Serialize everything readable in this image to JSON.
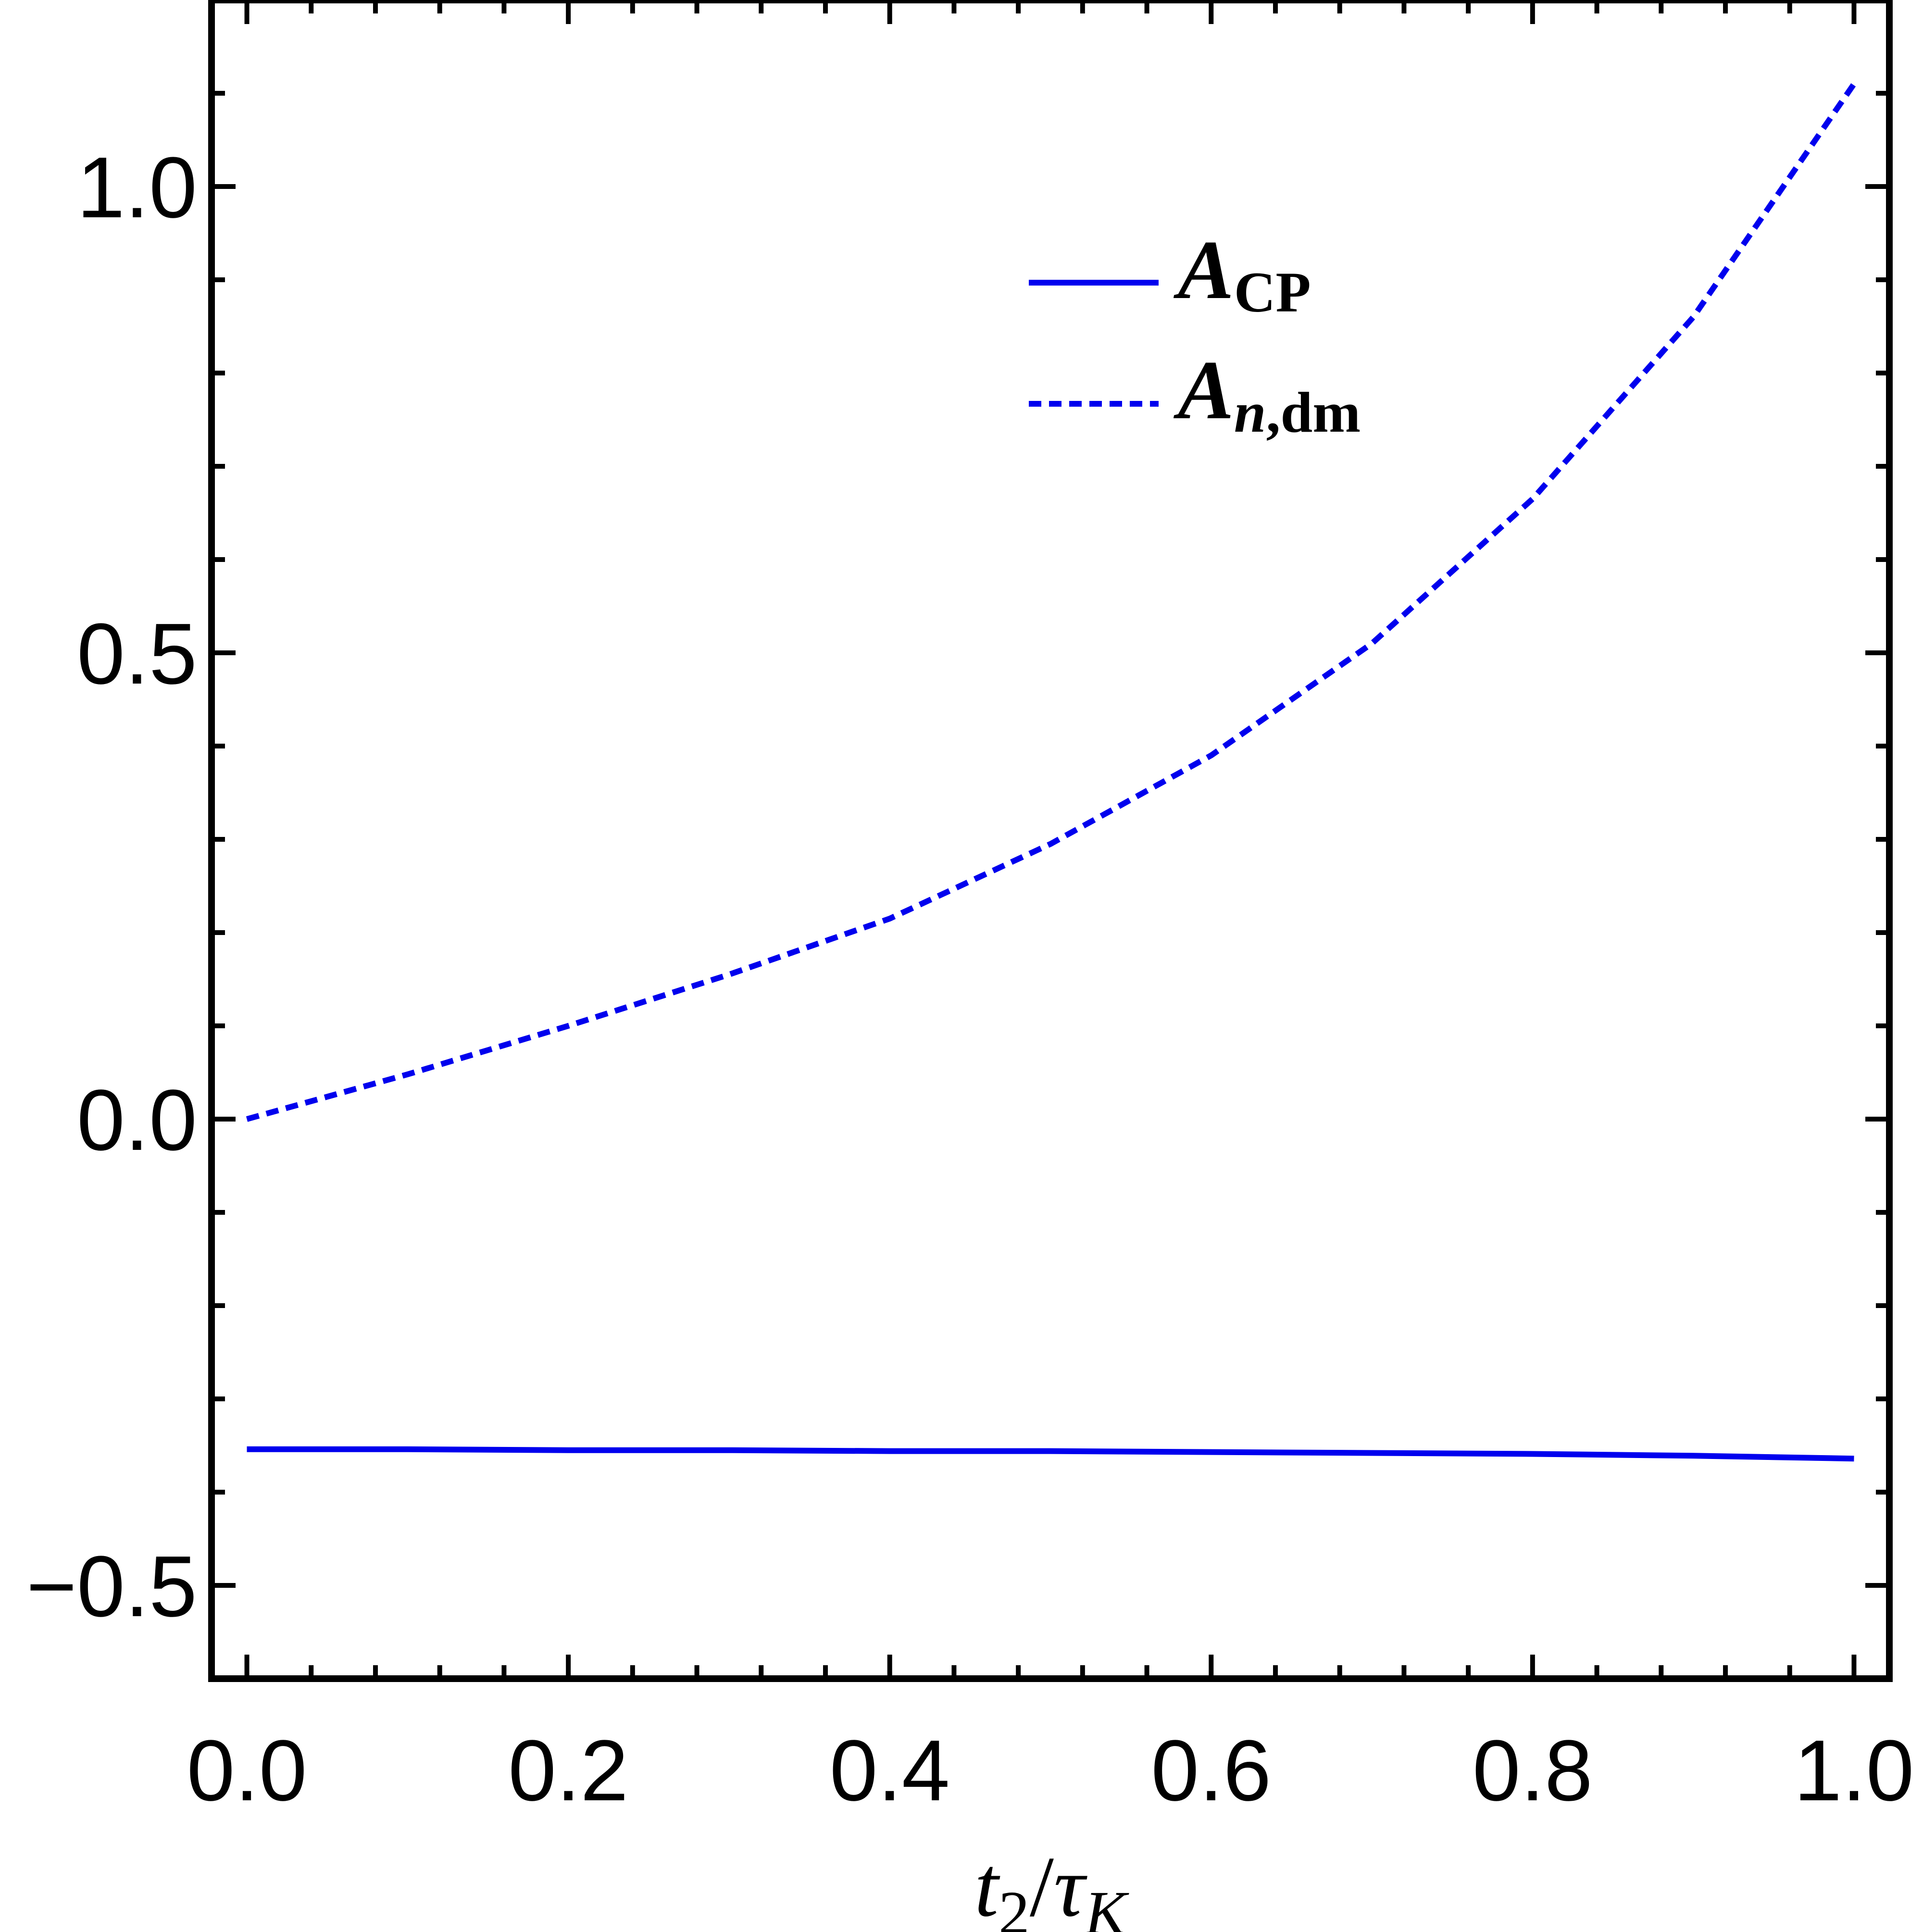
{
  "chart_data": {
    "type": "line",
    "xlabel": {
      "base": "t",
      "sub1": "2",
      "slash": "/",
      "tau": "τ",
      "sub2": "K"
    },
    "xlim": [
      -0.022,
      1.022
    ],
    "ylim": [
      -0.6,
      1.2
    ],
    "xticks": [
      0.0,
      0.2,
      0.4,
      0.6,
      0.8,
      1.0
    ],
    "xtick_labels": [
      "0.0",
      "0.2",
      "0.4",
      "0.6",
      "0.8",
      "1.0"
    ],
    "yticks": [
      -0.5,
      0.0,
      0.5,
      1.0
    ],
    "ytick_labels": [
      "−0.5",
      "0.0",
      "0.5",
      "1.0"
    ],
    "legend_position": "top-right",
    "grid": false,
    "series": [
      {
        "key": "acp",
        "name_main": "A",
        "name_sub": "CP",
        "color": "#0000ee",
        "style": "solid",
        "x": [
          0.0,
          0.1,
          0.2,
          0.3,
          0.4,
          0.5,
          0.6,
          0.7,
          0.8,
          0.9,
          1.0
        ],
        "y": [
          -0.354,
          -0.354,
          -0.355,
          -0.355,
          -0.356,
          -0.356,
          -0.357,
          -0.358,
          -0.359,
          -0.361,
          -0.364
        ]
      },
      {
        "key": "andm",
        "name_main": "A",
        "name_sub_italic": "n",
        "name_sub": ",dm",
        "color": "#0000ee",
        "style": "dotted",
        "x": [
          0.0,
          0.1,
          0.2,
          0.3,
          0.4,
          0.5,
          0.6,
          0.7,
          0.8,
          0.9,
          1.0
        ],
        "y": [
          0.0,
          0.048,
          0.1,
          0.155,
          0.215,
          0.295,
          0.39,
          0.51,
          0.665,
          0.86,
          1.11
        ]
      }
    ]
  }
}
